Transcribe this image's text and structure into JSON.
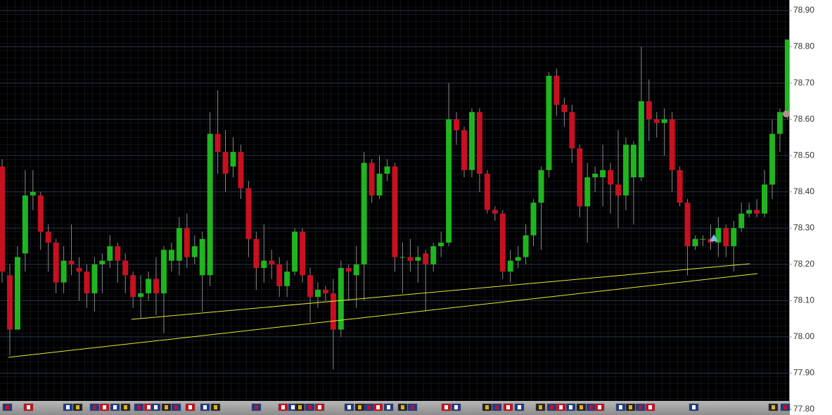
{
  "chart_data": {
    "type": "candlestick",
    "up_color": "#1fb51f",
    "down_color": "#c81020",
    "ylim": [
      77.8,
      78.9
    ],
    "yticks": [
      {
        "value": 77.8,
        "label": "77.80"
      },
      {
        "value": 77.9,
        "label": "77.90"
      },
      {
        "value": 78.0,
        "label": "78.00"
      },
      {
        "value": 78.1,
        "label": "78.10"
      },
      {
        "value": 78.2,
        "label": "78.20"
      },
      {
        "value": 78.3,
        "label": "78.30"
      },
      {
        "value": 78.4,
        "label": "78.40"
      },
      {
        "value": 78.5,
        "label": "78.50"
      },
      {
        "value": 78.6,
        "label": "78.60"
      },
      {
        "value": 78.7,
        "label": "78.70"
      },
      {
        "value": 78.8,
        "label": "78.80"
      },
      {
        "value": 78.9,
        "label": "78.90"
      }
    ],
    "grid": true,
    "open": [
      78.47,
      78.17,
      78.02,
      78.23,
      78.39,
      78.39,
      78.29,
      78.26,
      78.15,
      78.21,
      78.19,
      78.18,
      78.12,
      78.2,
      78.21,
      78.25,
      78.21,
      78.17,
      78.11,
      78.12,
      78.16,
      78.12,
      78.21,
      78.21,
      78.3,
      78.22,
      78.17,
      78.17,
      78.56,
      78.51,
      78.47,
      78.51,
      78.41,
      78.27,
      78.19,
      78.21,
      78.2,
      78.14,
      78.18,
      78.29,
      78.17,
      78.11,
      78.13,
      78.12,
      78.02,
      78.19,
      78.17,
      78.2,
      78.48,
      78.39,
      78.45,
      78.47,
      78.22,
      78.22,
      78.21,
      78.23,
      78.2,
      78.25,
      78.26,
      78.6,
      78.57,
      78.46,
      78.62,
      78.45,
      78.35,
      78.34,
      78.18,
      78.21,
      78.22,
      78.28,
      78.37,
      78.46,
      78.72,
      78.64,
      78.62,
      78.52,
      78.36,
      78.44,
      78.44,
      78.46,
      78.42,
      78.39,
      78.44,
      78.44,
      78.65,
      78.6,
      78.59,
      78.6,
      78.46,
      78.37,
      78.25,
      78.27,
      78.27,
      78.26,
      78.3,
      78.25,
      78.3,
      78.34,
      78.35,
      78.34,
      78.42,
      78.56,
      78.62
    ],
    "high": [
      78.49,
      78.2,
      78.25,
      78.46,
      78.46,
      78.4,
      78.31,
      78.27,
      78.25,
      78.31,
      78.22,
      78.2,
      78.22,
      78.23,
      78.28,
      78.26,
      78.23,
      78.18,
      78.17,
      78.18,
      78.22,
      78.25,
      78.26,
      78.33,
      78.34,
      78.28,
      78.29,
      78.62,
      78.68,
      78.57,
      78.55,
      78.53,
      78.43,
      78.29,
      78.31,
      78.24,
      78.22,
      78.21,
      78.3,
      78.3,
      78.19,
      78.15,
      78.14,
      78.16,
      78.21,
      78.2,
      78.25,
      78.51,
      78.49,
      78.5,
      78.49,
      78.48,
      78.26,
      78.27,
      78.25,
      78.24,
      78.26,
      78.29,
      78.7,
      78.62,
      78.58,
      78.63,
      78.63,
      78.46,
      78.36,
      78.35,
      78.24,
      78.25,
      78.31,
      78.38,
      78.47,
      78.73,
      78.74,
      78.66,
      78.64,
      78.53,
      78.48,
      78.47,
      78.53,
      78.48,
      78.57,
      78.55,
      78.54,
      78.8,
      78.71,
      78.62,
      78.63,
      78.62,
      78.47,
      78.38,
      78.28,
      78.28,
      78.31,
      78.33,
      78.31,
      78.32,
      78.37,
      78.37,
      78.38,
      78.46,
      78.6,
      78.63,
      78.82
    ],
    "low": [
      78.15,
      77.95,
      78.02,
      78.18,
      78.35,
      78.24,
      78.18,
      78.12,
      78.12,
      78.17,
      78.1,
      78.08,
      78.07,
      78.12,
      78.19,
      78.15,
      78.12,
      78.08,
      78.05,
      78.1,
      78.06,
      78.01,
      78.18,
      78.17,
      78.19,
      78.2,
      78.07,
      78.14,
      78.45,
      78.4,
      78.44,
      78.38,
      78.22,
      78.13,
      78.15,
      78.16,
      78.11,
      78.11,
      78.17,
      78.15,
      78.04,
      78.08,
      78.1,
      77.91,
      78.0,
      78.1,
      78.08,
      78.1,
      78.37,
      78.38,
      78.43,
      78.18,
      78.12,
      78.18,
      78.15,
      78.07,
      78.18,
      78.22,
      78.25,
      78.53,
      78.44,
      78.44,
      78.4,
      78.34,
      78.32,
      78.16,
      78.15,
      78.19,
      78.2,
      78.25,
      78.24,
      78.44,
      78.61,
      78.58,
      78.48,
      78.33,
      78.26,
      78.4,
      78.36,
      78.34,
      78.3,
      78.35,
      78.31,
      78.43,
      78.54,
      78.55,
      78.5,
      78.4,
      78.36,
      78.17,
      78.24,
      78.25,
      78.24,
      78.22,
      78.22,
      78.18,
      78.29,
      78.33,
      78.33,
      78.33,
      78.38,
      78.51,
      78.6
    ],
    "close": [
      78.18,
      78.02,
      78.22,
      78.39,
      78.4,
      78.29,
      78.26,
      78.15,
      78.21,
      78.2,
      78.18,
      78.12,
      78.2,
      78.21,
      78.25,
      78.21,
      78.17,
      78.11,
      78.12,
      78.16,
      78.12,
      78.24,
      78.24,
      78.3,
      78.22,
      78.25,
      78.27,
      78.56,
      78.51,
      78.45,
      78.51,
      78.41,
      78.27,
      78.19,
      78.21,
      78.2,
      78.14,
      78.18,
      78.29,
      78.17,
      78.11,
      78.13,
      78.12,
      78.02,
      78.19,
      78.18,
      78.2,
      78.48,
      78.39,
      78.45,
      78.47,
      78.22,
      78.22,
      78.21,
      78.22,
      78.2,
      78.25,
      78.26,
      78.6,
      78.57,
      78.46,
      78.62,
      78.45,
      78.35,
      78.34,
      78.18,
      78.21,
      78.22,
      78.28,
      78.37,
      78.46,
      78.72,
      78.64,
      78.62,
      78.52,
      78.36,
      78.44,
      78.45,
      78.46,
      78.42,
      78.39,
      78.53,
      78.53,
      78.65,
      78.6,
      78.59,
      78.6,
      78.46,
      78.37,
      78.25,
      78.27,
      78.27,
      78.26,
      78.3,
      78.25,
      78.3,
      78.34,
      78.35,
      78.34,
      78.42,
      78.56,
      78.62,
      78.82
    ]
  }
}
